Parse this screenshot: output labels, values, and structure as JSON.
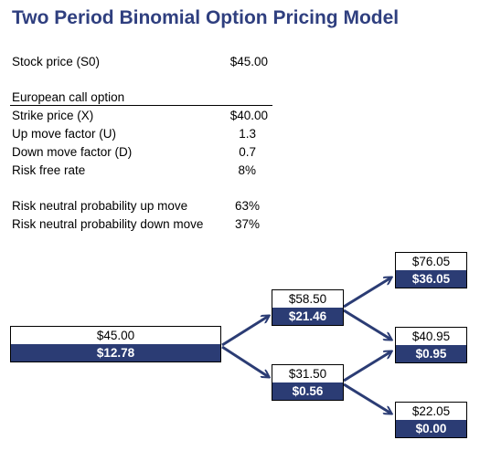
{
  "title": "Two Period Binomial Option Pricing Model",
  "inputs": {
    "stock_price_label": "Stock price (S0)",
    "stock_price_value": "$45.00",
    "section_label": "European call option",
    "strike_label": "Strike price (X)",
    "strike_value": "$40.00",
    "up_label": "Up move factor (U)",
    "up_value": "1.3",
    "down_label": "Down move factor (D)",
    "down_value": "0.7",
    "rf_label": "Risk free rate",
    "rf_value": "8%",
    "p_up_label": "Risk neutral probability up move",
    "p_up_value": "63%",
    "p_down_label": "Risk neutral probability down move",
    "p_down_value": "37%"
  },
  "tree": {
    "root": {
      "stock": "$45.00",
      "option": "$12.78"
    },
    "u": {
      "stock": "$58.50",
      "option": "$21.46"
    },
    "d": {
      "stock": "$31.50",
      "option": "$0.56"
    },
    "uu": {
      "stock": "$76.05",
      "option": "$36.05"
    },
    "ud": {
      "stock": "$40.95",
      "option": "$0.95"
    },
    "dd": {
      "stock": "$22.05",
      "option": "$0.00"
    }
  },
  "colors": {
    "title": "#2f3f7f",
    "option_fill": "#2b3c74",
    "arrow": "#2b3c74"
  }
}
